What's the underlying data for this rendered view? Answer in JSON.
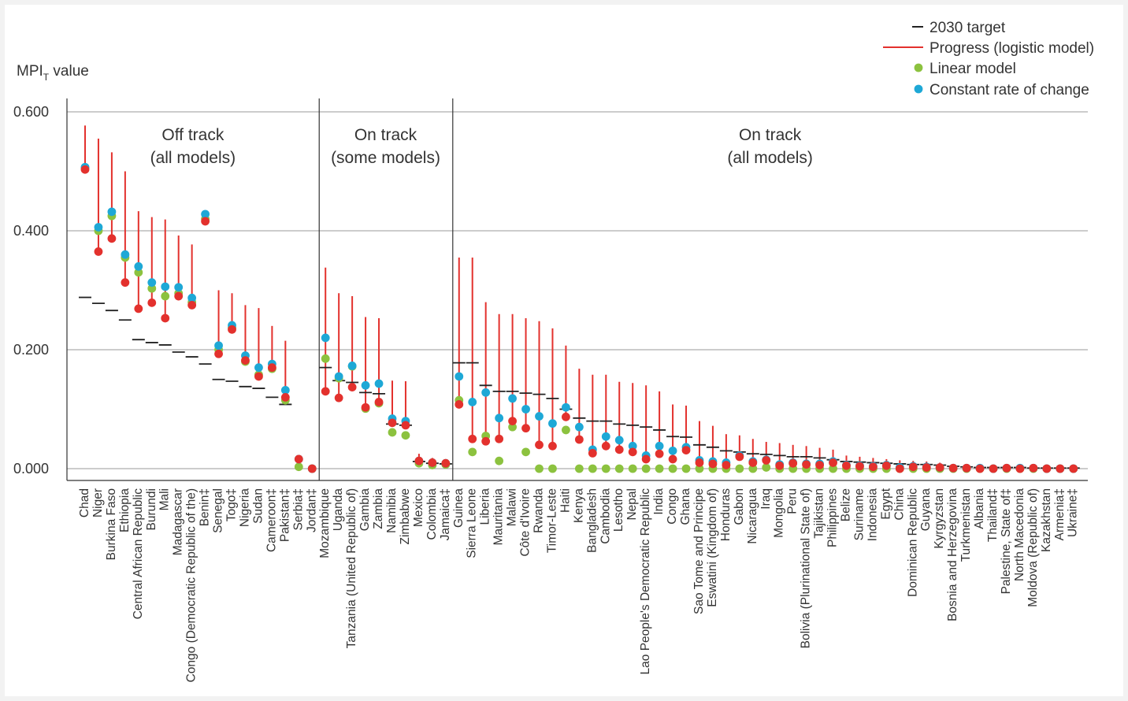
{
  "chart_data": {
    "type": "scatter",
    "ylabel": "MPI",
    "ylabel_sub": "T",
    "ylabel_suffix": " value",
    "ylim": [
      0,
      0.6
    ],
    "yticks": [
      0,
      0.2,
      0.4,
      0.6
    ],
    "ytick_labels": [
      "0.000",
      "0.200",
      "0.400",
      "0.600"
    ],
    "grid": true,
    "legend_position": "top-right",
    "legend": [
      {
        "key": "target",
        "label": "2030 target",
        "color": "#222222"
      },
      {
        "key": "progress",
        "label": "Progress (logistic model)",
        "color": "#e3312d"
      },
      {
        "key": "linear",
        "label": "Linear model",
        "color": "#8cc23f"
      },
      {
        "key": "constant",
        "label": "Constant rate of change",
        "color": "#1ea8d6"
      }
    ],
    "groups": [
      {
        "lines": [
          "Off track",
          "(all models)"
        ],
        "start": 0,
        "end": 17
      },
      {
        "lines": [
          "On track",
          "(some models)"
        ],
        "start": 18,
        "end": 27
      },
      {
        "lines": [
          "On track",
          "(all models)"
        ],
        "start": 28,
        "end": 74
      }
    ],
    "categories": [
      "Chad",
      "Niger",
      "Burkina Faso",
      "Ethiopia",
      "Central African Republic",
      "Burundi",
      "Mali",
      "Madagascar",
      "Congo (Democratic Republic of the)",
      "Benin‡",
      "Senegal",
      "Togo‡",
      "Nigeria",
      "Sudan",
      "Cameroon‡",
      "Pakistan‡",
      "Serbia‡",
      "Jordan‡",
      "Mozambique",
      "Uganda",
      "Tanzania (United Republic of)",
      "Gambia",
      "Zambia",
      "Namibia",
      "Zimbabwe",
      "Mexico",
      "Colombia",
      "Jamaica‡",
      "Guinea",
      "Sierra Leone",
      "Liberia",
      "Mauritania",
      "Malawi",
      "Côte d'Ivoire",
      "Rwanda",
      "Timor-Leste",
      "Haiti",
      "Kenya",
      "Bangladesh",
      "Cambodia",
      "Lesotho",
      "Nepal",
      "Lao People's Democratic Republic",
      "India",
      "Congo",
      "Ghana",
      "Sao Tome and Principe",
      "Eswatini (Kingdom of)",
      "Honduras",
      "Gabon",
      "Nicaragua",
      "Iraq",
      "Mongolia",
      "Peru",
      "Bolivia (Plurinational State of)",
      "Tajikistan",
      "Philippines",
      "Belize",
      "Suriname",
      "Indonesia",
      "Egypt",
      "China",
      "Dominican Republic",
      "Guyana",
      "Kyrgyzstan",
      "Bosnia and Herzegovina",
      "Turkmenistan",
      "Albania",
      "Thailand‡",
      "Palestine, State of‡",
      "North Macedonia",
      "Moldova (Republic of)",
      "Kazakhstan",
      "Armenia‡",
      "Ukraine‡"
    ],
    "series": [
      {
        "name": "2030 target",
        "style": "dash",
        "values": [
          0.288,
          0.278,
          0.266,
          0.25,
          0.217,
          0.212,
          0.208,
          0.196,
          0.188,
          0.176,
          0.15,
          0.147,
          0.138,
          0.135,
          0.12,
          0.108,
          null,
          null,
          0.17,
          0.148,
          0.145,
          0.128,
          0.126,
          0.075,
          0.073,
          0.012,
          0.009,
          0.008,
          0.178,
          0.178,
          0.14,
          0.13,
          0.13,
          0.127,
          0.125,
          0.118,
          0.1,
          0.085,
          0.08,
          0.08,
          0.075,
          0.073,
          0.07,
          0.065,
          0.054,
          0.053,
          0.04,
          0.036,
          0.03,
          0.028,
          0.025,
          0.024,
          0.022,
          0.02,
          0.02,
          0.018,
          0.015,
          0.012,
          0.011,
          0.01,
          0.009,
          0.008,
          0.007,
          0.007,
          0.006,
          0.004,
          0.003,
          0.002,
          0.002,
          0.002,
          0.002,
          0.001,
          0.001,
          0.001,
          0.001
        ]
      },
      {
        "name": "Progress (logistic model)",
        "style": "dot",
        "values": [
          0.503,
          0.365,
          0.387,
          0.313,
          0.269,
          0.279,
          0.253,
          0.29,
          0.275,
          0.416,
          0.193,
          0.234,
          0.182,
          0.155,
          0.17,
          0.12,
          0.016,
          0.0,
          0.13,
          0.119,
          0.137,
          0.103,
          0.112,
          0.077,
          0.073,
          0.013,
          0.01,
          0.009,
          0.108,
          0.05,
          0.046,
          0.05,
          0.08,
          0.068,
          0.04,
          0.038,
          0.087,
          0.049,
          0.026,
          0.038,
          0.032,
          0.028,
          0.016,
          0.025,
          0.016,
          0.031,
          0.01,
          0.008,
          0.006,
          0.02,
          0.01,
          0.014,
          0.005,
          0.009,
          0.007,
          0.006,
          0.01,
          0.005,
          0.004,
          0.003,
          0.005,
          0.0,
          0.003,
          0.002,
          0.002,
          0.001,
          0.001,
          0.0,
          0.0,
          0.001,
          0.0,
          0.001,
          0.0,
          0.0,
          0.0
        ]
      },
      {
        "name": "Progress upper",
        "style": "bar-top",
        "values": [
          0.577,
          0.555,
          0.532,
          0.5,
          0.433,
          0.423,
          0.419,
          0.392,
          0.377,
          0.35,
          0.3,
          0.295,
          0.275,
          0.27,
          0.24,
          0.215,
          0.016,
          0.0,
          0.338,
          0.295,
          0.29,
          0.255,
          0.253,
          0.148,
          0.147,
          0.025,
          0.018,
          0.015,
          0.355,
          0.355,
          0.28,
          0.26,
          0.26,
          0.253,
          0.248,
          0.236,
          0.207,
          0.168,
          0.158,
          0.158,
          0.146,
          0.144,
          0.14,
          0.13,
          0.108,
          0.106,
          0.08,
          0.072,
          0.058,
          0.056,
          0.05,
          0.045,
          0.043,
          0.04,
          0.038,
          0.035,
          0.032,
          0.022,
          0.02,
          0.018,
          0.016,
          0.014,
          0.013,
          0.012,
          0.01,
          0.008,
          0.006,
          0.004,
          0.004,
          0.003,
          0.003,
          0.002,
          0.002,
          0.002,
          0.002
        ]
      },
      {
        "name": "Linear model",
        "style": "dot",
        "values": [
          0.505,
          0.4,
          0.425,
          0.355,
          0.33,
          0.303,
          0.29,
          0.295,
          0.28,
          0.42,
          0.2,
          0.237,
          0.18,
          0.158,
          0.168,
          0.115,
          0.003,
          0.0,
          0.185,
          0.152,
          0.172,
          0.101,
          0.11,
          0.061,
          0.056,
          0.009,
          0.006,
          0.007,
          0.115,
          0.028,
          0.055,
          0.013,
          0.07,
          0.028,
          0.0,
          0.0,
          0.065,
          0.0,
          0.0,
          0.0,
          0.0,
          0.0,
          0.0,
          0.0,
          0.0,
          0.0,
          0.0,
          0.0,
          0.0,
          0.0,
          0.0,
          0.002,
          0.0,
          0.0,
          0.0,
          0.0,
          0.0,
          0.0,
          0.0,
          0.0,
          0.0,
          0.0,
          0.0,
          0.0,
          0.0,
          0.0,
          0.0,
          0.0,
          0.0,
          0.0,
          0.0,
          0.0,
          0.0,
          0.0,
          0.0
        ]
      },
      {
        "name": "Constant rate of change",
        "style": "dot",
        "values": [
          0.507,
          0.406,
          0.432,
          0.36,
          0.34,
          0.313,
          0.306,
          0.305,
          0.287,
          0.428,
          0.207,
          0.241,
          0.19,
          0.17,
          0.176,
          0.132,
          0.016,
          0.0,
          0.22,
          0.155,
          0.173,
          0.14,
          0.143,
          0.084,
          0.08,
          0.013,
          0.01,
          0.009,
          0.155,
          0.112,
          0.128,
          0.085,
          0.118,
          0.1,
          0.088,
          0.076,
          0.103,
          0.07,
          0.032,
          0.054,
          0.048,
          0.038,
          0.022,
          0.038,
          0.03,
          0.036,
          0.014,
          0.012,
          0.01,
          0.022,
          0.012,
          0.015,
          0.007,
          0.01,
          0.008,
          0.008,
          0.012,
          0.006,
          0.005,
          0.004,
          0.006,
          0.002,
          0.004,
          0.003,
          0.002,
          0.001,
          0.001,
          0.001,
          0.0,
          0.001,
          0.001,
          0.001,
          0.0,
          0.0,
          0.0
        ]
      }
    ]
  }
}
